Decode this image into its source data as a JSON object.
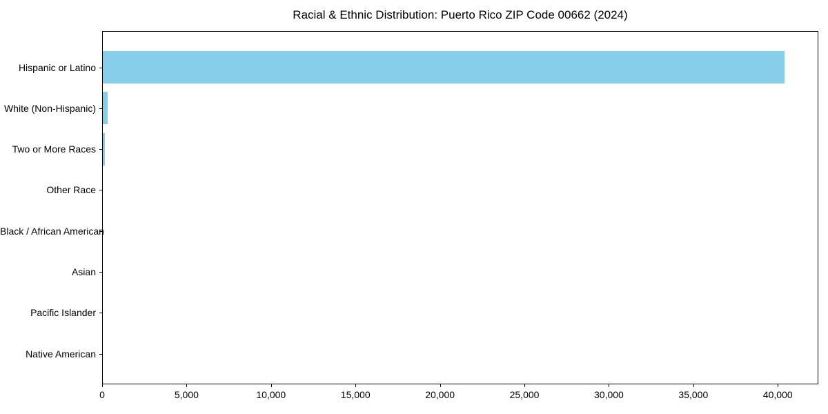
{
  "chart_data": {
    "type": "bar",
    "orientation": "horizontal",
    "title": "Racial & Ethnic Distribution: Puerto Rico ZIP Code 00662 (2024)",
    "categories": [
      "Hispanic or Latino",
      "White (Non-Hispanic)",
      "Two or More Races",
      "Other Race",
      "Black / African American",
      "Asian",
      "Pacific Islander",
      "Native American"
    ],
    "values": [
      40380,
      330,
      180,
      35,
      0,
      0,
      0,
      0
    ],
    "xlabel": "",
    "ylabel": "",
    "xlim": [
      0,
      42400
    ],
    "x_ticks": [
      0,
      5000,
      10000,
      15000,
      20000,
      25000,
      30000,
      35000,
      40000
    ],
    "x_tick_labels": [
      "0",
      "5,000",
      "10,000",
      "15,000",
      "20,000",
      "25,000",
      "30,000",
      "35,000",
      "40,000"
    ],
    "bar_color": "#87CEEB",
    "axis_color": "#000000",
    "background_color": "#ffffff",
    "grid": false,
    "legend": null
  }
}
